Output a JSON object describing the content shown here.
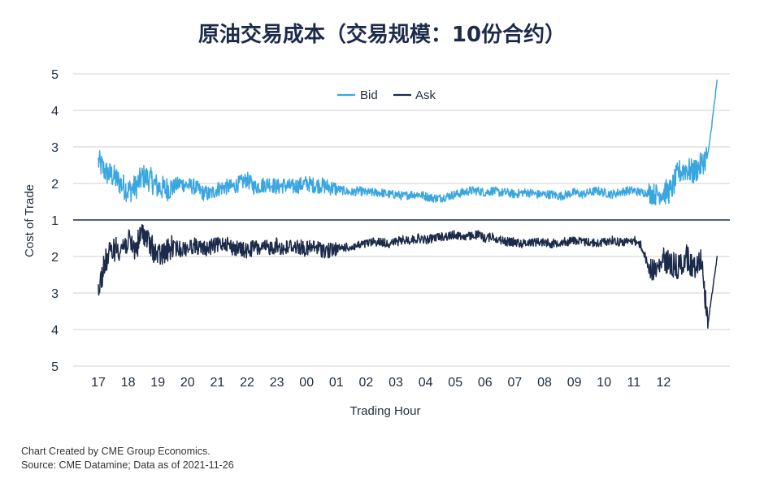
{
  "title": "原油交易成本（交易规模：10份合约）",
  "footer": {
    "line1": "Chart Created by CME Group Economics.",
    "line2": "Source:  CME Datamine; Data as of 2021-11-26"
  },
  "chart_data": {
    "type": "line",
    "xlabel": "Trading Hour",
    "ylabel": "Cost of Trade",
    "categories": [
      "17",
      "18",
      "19",
      "20",
      "21",
      "22",
      "23",
      "00",
      "01",
      "02",
      "03",
      "04",
      "05",
      "06",
      "07",
      "08",
      "09",
      "10",
      "11",
      "12"
    ],
    "bid_tick_labels": [
      "5",
      "4",
      "3",
      "2",
      "1"
    ],
    "ask_tick_labels": [
      "2",
      "3",
      "4",
      "5"
    ],
    "legend_position": "top-center",
    "grid": true,
    "series": [
      {
        "name": "Bid",
        "color": "#3aa6e0",
        "ylim": [
          1,
          5
        ],
        "x": [
          0,
          0.25,
          0.5,
          0.75,
          1,
          1.25,
          1.5,
          1.75,
          2,
          2.25,
          2.5,
          2.75,
          3,
          3.25,
          3.5,
          3.75,
          4,
          4.25,
          4.5,
          4.75,
          5,
          5.25,
          5.5,
          5.75,
          6,
          6.25,
          6.5,
          6.75,
          7,
          7.25,
          7.5,
          7.75,
          8,
          8.25,
          8.5,
          8.75,
          9,
          9.25,
          9.5,
          9.75,
          10,
          10.25,
          10.5,
          10.75,
          11,
          11.25,
          11.5,
          11.75,
          12,
          12.25,
          12.5,
          12.75,
          13,
          13.25,
          13.5,
          13.75,
          14,
          14.25,
          14.5,
          14.75,
          15,
          15.25,
          15.5,
          15.75,
          16,
          16.25,
          16.5,
          16.75,
          17,
          17.25,
          17.5,
          17.75,
          18,
          18.25,
          18.5,
          18.75,
          19,
          19.25,
          19.5,
          19.75,
          20,
          20.25,
          20.5,
          20.8
        ],
        "values": [
          2.6,
          2.3,
          2.2,
          2.0,
          1.8,
          1.9,
          2.2,
          2.1,
          1.9,
          1.85,
          1.9,
          2.0,
          1.95,
          1.9,
          1.75,
          1.7,
          1.85,
          1.9,
          1.9,
          2.0,
          2.1,
          1.9,
          1.95,
          2.0,
          1.9,
          1.95,
          1.9,
          1.95,
          2.0,
          1.95,
          1.95,
          1.9,
          1.85,
          1.8,
          1.75,
          1.8,
          1.75,
          1.75,
          1.75,
          1.7,
          1.7,
          1.65,
          1.7,
          1.7,
          1.65,
          1.6,
          1.6,
          1.65,
          1.7,
          1.75,
          1.8,
          1.8,
          1.75,
          1.8,
          1.75,
          1.75,
          1.7,
          1.75,
          1.75,
          1.7,
          1.7,
          1.7,
          1.65,
          1.7,
          1.75,
          1.7,
          1.75,
          1.8,
          1.75,
          1.7,
          1.75,
          1.8,
          1.8,
          1.75,
          1.75,
          1.7,
          1.75,
          1.8,
          2.3,
          2.4,
          2.3,
          2.5,
          2.8,
          4.8
        ]
      },
      {
        "name": "Ask",
        "color": "#1c2b4a",
        "ylim": [
          1,
          5
        ],
        "x": [
          0,
          0.25,
          0.5,
          0.75,
          1,
          1.25,
          1.5,
          1.75,
          2,
          2.25,
          2.5,
          2.75,
          3,
          3.25,
          3.5,
          3.75,
          4,
          4.25,
          4.5,
          4.75,
          5,
          5.25,
          5.5,
          5.75,
          6,
          6.25,
          6.5,
          6.75,
          7,
          7.25,
          7.5,
          7.75,
          8,
          8.25,
          8.5,
          8.75,
          9,
          9.25,
          9.5,
          9.75,
          10,
          10.25,
          10.5,
          10.75,
          11,
          11.25,
          11.5,
          11.75,
          12,
          12.25,
          12.5,
          12.75,
          13,
          13.25,
          13.5,
          13.75,
          14,
          14.25,
          14.5,
          14.75,
          15,
          15.25,
          15.5,
          15.75,
          16,
          16.25,
          16.5,
          16.75,
          17,
          17.25,
          17.5,
          17.75,
          18,
          18.25,
          18.5,
          18.75,
          19,
          19.25,
          19.5,
          19.75,
          20,
          20.25,
          20.5,
          20.8
        ],
        "values": [
          2.9,
          2.1,
          1.8,
          1.75,
          1.6,
          1.8,
          1.3,
          1.7,
          2.0,
          1.9,
          1.75,
          1.8,
          1.75,
          1.7,
          1.8,
          1.75,
          1.7,
          1.6,
          1.75,
          1.8,
          1.85,
          1.75,
          1.8,
          1.75,
          1.7,
          1.8,
          1.7,
          1.75,
          1.8,
          1.75,
          1.8,
          1.85,
          1.8,
          1.75,
          1.75,
          1.7,
          1.65,
          1.6,
          1.6,
          1.65,
          1.6,
          1.55,
          1.55,
          1.5,
          1.55,
          1.5,
          1.45,
          1.45,
          1.4,
          1.45,
          1.45,
          1.4,
          1.5,
          1.45,
          1.55,
          1.6,
          1.6,
          1.65,
          1.6,
          1.6,
          1.6,
          1.65,
          1.6,
          1.6,
          1.55,
          1.6,
          1.6,
          1.65,
          1.6,
          1.55,
          1.6,
          1.6,
          1.55,
          1.7,
          2.3,
          2.4,
          2.1,
          2.2,
          2.3,
          2.0,
          2.3,
          2.0,
          3.8,
          2.0
        ]
      }
    ]
  }
}
